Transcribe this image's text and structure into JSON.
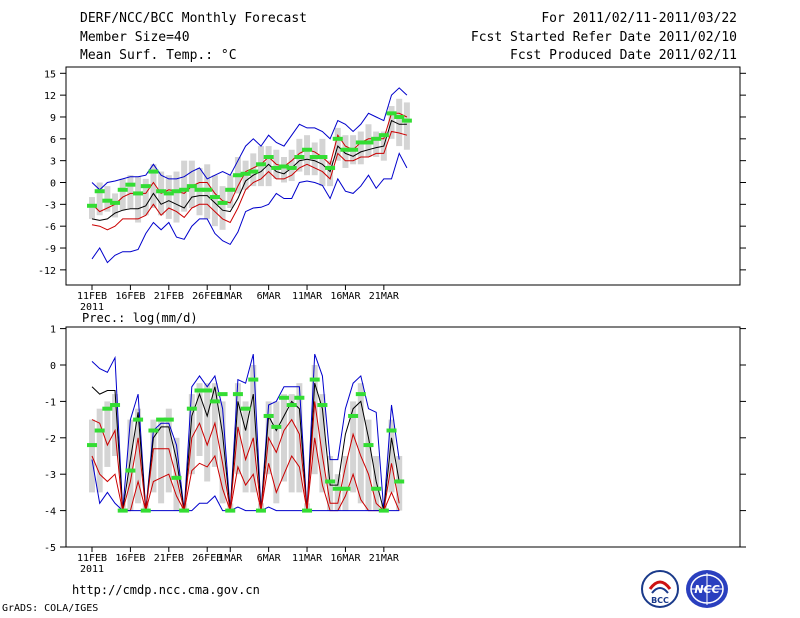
{
  "header": {
    "title": "DERF/NCC/BCC Monthly Forecast",
    "member_size": "Member Size=40",
    "variable": "Mean Surf. Temp.: °C",
    "forecast_period": "For 2011/02/11-2011/03/22",
    "refer_date": "Fcst Started Refer Date 2011/02/10",
    "produced_date": "Fcst Produced Date 2011/02/11"
  },
  "footer": {
    "url": "http://cmdp.ncc.cma.gov.cn",
    "grads": "GrADS: COLA/IGES",
    "logo_bcc": "BCC",
    "logo_ncc": "NCC"
  },
  "colors": {
    "box": "#d4d4d4",
    "median": "#33dd33",
    "envelope": "#0000cc",
    "band": "#cc0000",
    "mean": "#000000"
  },
  "chart_data": [
    {
      "type": "line",
      "title": "Mean Surf. Temp.: °C",
      "xlabel": "",
      "ylabel": "",
      "ylim": [
        -14,
        16
      ],
      "yticks": [
        15,
        12,
        9,
        6,
        3,
        0,
        -3,
        -6,
        -9,
        -12
      ],
      "xticks": [
        {
          "day": 0,
          "label": "11FEB",
          "sub": "2011"
        },
        {
          "day": 5,
          "label": "16FEB"
        },
        {
          "day": 10,
          "label": "21FEB"
        },
        {
          "day": 15,
          "label": "26FEB"
        },
        {
          "day": 18,
          "label": "1MAR"
        },
        {
          "day": 23,
          "label": "6MAR"
        },
        {
          "day": 28,
          "label": "11MAR"
        },
        {
          "day": 33,
          "label": "16MAR"
        },
        {
          "day": 38,
          "label": "21MAR"
        }
      ],
      "series": [
        {
          "name": "max",
          "values": [
            -10.5,
            -9,
            -11,
            -10,
            -9.5,
            -9.5,
            -9.2,
            -7,
            -5.5,
            -6.5,
            -5.5,
            -7.5,
            -7.8,
            -6,
            -5,
            -5,
            -7,
            -8,
            -8.5,
            -6.8,
            -4,
            -3.5,
            -3.4,
            -3,
            -1.5,
            -2.2,
            -2.2,
            0,
            0.2,
            0,
            -0.4,
            -2.2,
            0.5,
            -1.2,
            -1.5,
            -0.5,
            1,
            -0.8,
            0.5,
            0.5,
            4,
            2
          ]
        },
        {
          "name": "max_upper",
          "values": [
            0,
            -1,
            0,
            0.2,
            0.5,
            0.8,
            0.8,
            1,
            2.5,
            1,
            0.5,
            0.5,
            0.8,
            1.5,
            2,
            0.5,
            1,
            1.5,
            1,
            3,
            5,
            6,
            5,
            6.5,
            5.5,
            5,
            6.5,
            8,
            7.5,
            7.5,
            7,
            6,
            8.5,
            8,
            7,
            8,
            9.5,
            9,
            8.5,
            12,
            13,
            12
          ]
        },
        {
          "name": "mean",
          "values": [
            -5,
            -5.2,
            -5,
            -4.2,
            -3.8,
            -3.6,
            -3.6,
            -3.2,
            -1.5,
            -3,
            -2.5,
            -3,
            -3.5,
            -2,
            -1.8,
            -1.8,
            -2.8,
            -3.8,
            -4,
            -2.2,
            0.2,
            1,
            1.5,
            2.5,
            1.5,
            1.2,
            2,
            3,
            3.2,
            3,
            2.5,
            1.5,
            5,
            4,
            3.6,
            4.2,
            4.5,
            4.8,
            5,
            8.5,
            8,
            8
          ]
        },
        {
          "name": "band_high",
          "values": [
            -3,
            -4,
            -3.5,
            -3,
            -2,
            -1.5,
            -1.5,
            -1.5,
            0,
            -1.5,
            -1,
            -1.2,
            -1.5,
            -0.5,
            0,
            0,
            -1.5,
            -2.5,
            -2.8,
            -0.5,
            1.5,
            2,
            2.5,
            3.5,
            2.5,
            2.2,
            3,
            4,
            4.5,
            4.2,
            3.5,
            2.5,
            6.5,
            5,
            4.5,
            5.5,
            6,
            6,
            6,
            9.5,
            9.5,
            9
          ]
        },
        {
          "name": "band_low",
          "values": [
            -5.8,
            -6,
            -6.5,
            -6,
            -5,
            -5,
            -5,
            -4.5,
            -3,
            -4.5,
            -3.5,
            -4,
            -4.8,
            -3.5,
            -3,
            -3,
            -4,
            -5,
            -5.5,
            -3.5,
            -1,
            0,
            0.5,
            1.5,
            0.5,
            0.5,
            1,
            2,
            2.5,
            2,
            1.5,
            0.5,
            4,
            3,
            3,
            3.5,
            3.5,
            4,
            4,
            7,
            6.8,
            6.5
          ]
        },
        {
          "name": "median",
          "values": [
            -3.2,
            -1.2,
            -2.5,
            -2.8,
            -1,
            -0.3,
            -1.5,
            -0.5,
            1.5,
            -1.2,
            -1.5,
            -1.2,
            -1,
            -0.5,
            -1,
            -1,
            -2,
            -2.8,
            -1,
            1,
            1.2,
            1.5,
            2.5,
            3.5,
            2,
            2.2,
            2,
            3.5,
            4.5,
            3.5,
            3.5,
            2,
            6,
            4.5,
            4.5,
            5.5,
            5.5,
            6,
            6.5,
            9.5,
            9,
            8.5
          ]
        },
        {
          "name": "box_low",
          "values": [
            -5,
            -4.5,
            -4,
            -4.8,
            -3.8,
            -3.5,
            -5.5,
            -4.5,
            -3.5,
            -4.5,
            -5,
            -5.5,
            -4,
            -3.5,
            -4.5,
            -5,
            -6,
            -6.5,
            -3.5,
            -1.5,
            -1,
            -0.5,
            -0.5,
            -0.5,
            0.5,
            0,
            0.2,
            1.5,
            1,
            1,
            -0.5,
            -0.5,
            3,
            2,
            2.5,
            2.5,
            3.5,
            3.5,
            3,
            6,
            5,
            4.5
          ]
        },
        {
          "name": "box_high",
          "values": [
            -2,
            0,
            -0.5,
            -1.5,
            0.5,
            1,
            0.8,
            0.5,
            2.5,
            1.5,
            1,
            1.5,
            3,
            3,
            2,
            2.5,
            1,
            -0.5,
            1,
            3.5,
            3,
            4,
            5,
            5,
            4.5,
            3.5,
            4.5,
            6,
            6.5,
            5.5,
            6,
            3,
            7.5,
            6.5,
            6.5,
            7,
            8,
            7,
            7,
            10.5,
            11.5,
            11
          ]
        }
      ]
    },
    {
      "type": "line",
      "title": "Prec.: log(mm/d)",
      "xlabel": "",
      "ylabel": "",
      "ylim": [
        -5,
        1
      ],
      "yticks": [
        1,
        0,
        -1,
        -2,
        -3,
        -4,
        -5
      ],
      "xticks": [
        {
          "day": 0,
          "label": "11FEB",
          "sub": "2011"
        },
        {
          "day": 5,
          "label": "16FEB"
        },
        {
          "day": 10,
          "label": "21FEB"
        },
        {
          "day": 15,
          "label": "26FEB"
        },
        {
          "day": 18,
          "label": "1MAR"
        },
        {
          "day": 23,
          "label": "6MAR"
        },
        {
          "day": 28,
          "label": "11MAR"
        },
        {
          "day": 33,
          "label": "16MAR"
        },
        {
          "day": 38,
          "label": "21MAR"
        }
      ],
      "series": [
        {
          "name": "max",
          "values": [
            0.1,
            -0.1,
            -0.2,
            0.2,
            -4,
            -1.5,
            -0.8,
            -4,
            -1.8,
            -1.6,
            -1.6,
            -2.2,
            -4,
            -0.6,
            -0.3,
            -0.6,
            -0.3,
            -1.2,
            -4,
            -0.4,
            -0.5,
            0.3,
            -4,
            -1.1,
            -1,
            -0.6,
            -0.6,
            -0.6,
            -4,
            0.3,
            -0.3,
            -2.6,
            -2.6,
            -1.2,
            -0.5,
            -0.3,
            -1.2,
            -1.3,
            -4,
            -1.1,
            -2.6
          ]
        },
        {
          "name": "mean",
          "values": [
            -0.6,
            -0.8,
            -0.7,
            -0.7,
            -4,
            -2.6,
            -1.3,
            -4,
            -2,
            -1.7,
            -1.7,
            -2.6,
            -4,
            -1.4,
            -0.8,
            -1.4,
            -0.6,
            -1.9,
            -4,
            -1,
            -1.8,
            -0.8,
            -4,
            -1.4,
            -1.8,
            -1.4,
            -1,
            -1.2,
            -4,
            -0.5,
            -1.2,
            -3.3,
            -3.3,
            -1.9,
            -1.2,
            -1,
            -2,
            -3.2,
            -4,
            -2,
            -3.2
          ]
        },
        {
          "name": "band_high",
          "values": [
            -1.5,
            -1.6,
            -2.2,
            -1.8,
            -4,
            -3.2,
            -2,
            -4,
            -2.3,
            -2.3,
            -2.3,
            -3.1,
            -4,
            -2,
            -1.6,
            -2.2,
            -1.6,
            -2.7,
            -4,
            -1.7,
            -2.6,
            -2,
            -4,
            -2,
            -2.4,
            -1.8,
            -1.5,
            -1.9,
            -4,
            -1,
            -2.5,
            -3.8,
            -3.8,
            -2.8,
            -1.9,
            -2.5,
            -3,
            -3.8,
            -4,
            -2.7,
            -3.8
          ]
        },
        {
          "name": "band_low",
          "values": [
            -2.5,
            -3,
            -3.2,
            -3,
            -4,
            -4,
            -3.2,
            -4,
            -3.2,
            -3.1,
            -3,
            -3.6,
            -4,
            -2.9,
            -2.7,
            -2.8,
            -2.5,
            -3.4,
            -4,
            -2.8,
            -3.3,
            -3,
            -4,
            -2.7,
            -3.5,
            -3,
            -2.5,
            -2.8,
            -4,
            -2,
            -3.3,
            -4,
            -4,
            -3.6,
            -3,
            -3.7,
            -4,
            -4,
            -4,
            -3.5,
            -4
          ]
        },
        {
          "name": "min",
          "values": [
            -2.6,
            -3.8,
            -3.5,
            -3.8,
            -4,
            -4,
            -4,
            -4,
            -4,
            -4,
            -4,
            -4,
            -4,
            -4,
            -3.8,
            -3.8,
            -3.6,
            -4,
            -4,
            -3.9,
            -4,
            -4,
            -4,
            -3.9,
            -4,
            -4,
            -4,
            -4,
            -4,
            -4,
            -4,
            -4,
            -4,
            -4,
            -4,
            -4,
            -4,
            -4,
            -4,
            -4,
            -4
          ]
        },
        {
          "name": "median",
          "values": [
            -2.2,
            -1.8,
            -1.2,
            -1.1,
            -4,
            -2.9,
            -1.5,
            -4,
            -1.8,
            -1.5,
            -1.5,
            -3.1,
            -4,
            -1.2,
            -0.7,
            -0.7,
            -1,
            -0.8,
            -4,
            -0.8,
            -1.2,
            -0.4,
            -4,
            -1.4,
            -1.7,
            -0.9,
            -1.1,
            -0.9,
            -4,
            -0.4,
            -1.1,
            -3.2,
            -3.4,
            -3.4,
            -1.4,
            -0.8,
            -2.2,
            -3.4,
            -4,
            -1.8,
            -3.2
          ]
        },
        {
          "name": "box_low",
          "values": [
            -3.5,
            -3.5,
            -2.8,
            -2.5,
            -4,
            -4,
            -3.8,
            -4,
            -3.5,
            -3.8,
            -3.5,
            -4,
            -4,
            -3,
            -2.5,
            -3.2,
            -2.8,
            -3.8,
            -4,
            -3,
            -3.5,
            -3.5,
            -4,
            -3,
            -3.8,
            -3.2,
            -3.5,
            -3.5,
            -4,
            -3,
            -3.5,
            -4,
            -4,
            -4,
            -3.5,
            -3.8,
            -4,
            -4,
            -4,
            -3.5,
            -4
          ]
        },
        {
          "name": "box_high",
          "values": [
            -1.5,
            -1.2,
            -1,
            -0.8,
            -3.8,
            -1.5,
            -1.2,
            -3.8,
            -1.5,
            -1.5,
            -1.2,
            -2,
            -3.8,
            -0.8,
            -0.5,
            -0.5,
            -0.5,
            -1,
            -3.8,
            -0.5,
            -1,
            0,
            -3.8,
            -1,
            -1,
            -0.8,
            -0.8,
            -0.5,
            -3.8,
            0,
            -0.8,
            -2.5,
            -3,
            -2.5,
            -1,
            -0.5,
            -1.5,
            -2.5,
            -3.8,
            -1.5,
            -2.5
          ]
        }
      ]
    }
  ]
}
